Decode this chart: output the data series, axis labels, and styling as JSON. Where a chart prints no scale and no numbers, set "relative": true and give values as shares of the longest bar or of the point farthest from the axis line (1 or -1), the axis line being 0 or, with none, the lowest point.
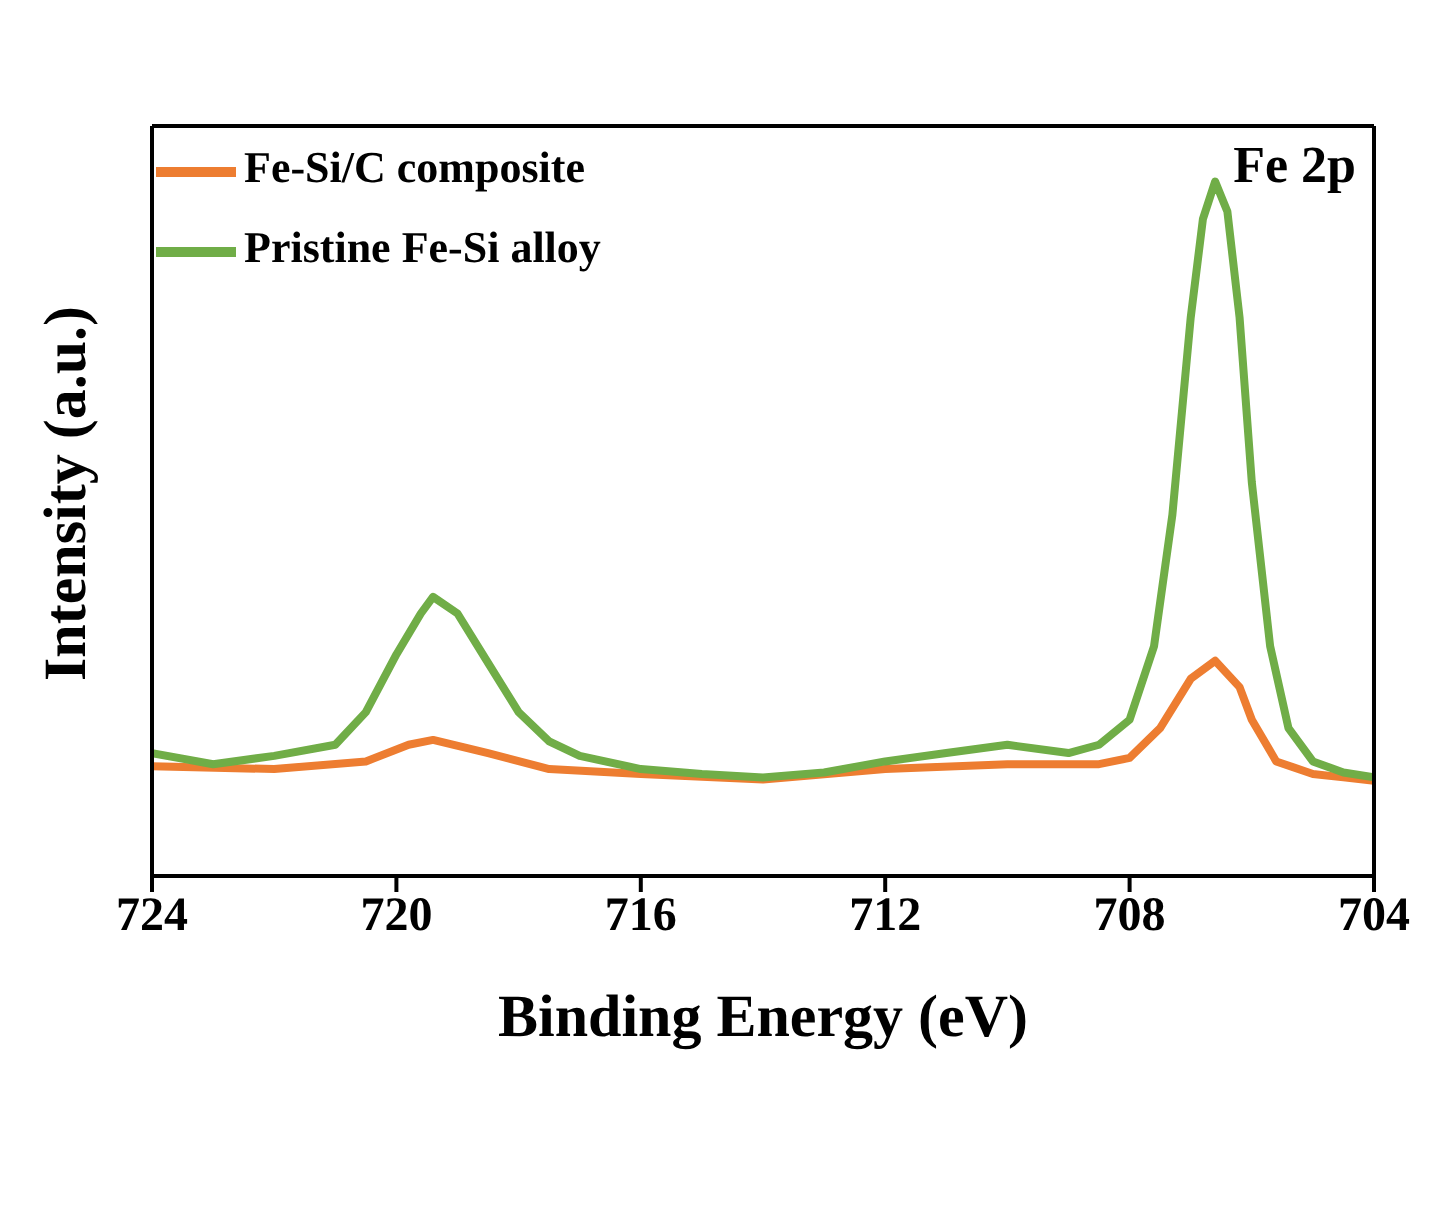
{
  "chart_data": {
    "type": "line",
    "xlabel": "Binding Energy (eV)",
    "ylabel": "Intensity (a.u.)",
    "annotations": [
      "Fe 2p"
    ],
    "relative": true,
    "xlim": [
      724,
      704
    ],
    "xticks": [
      724,
      720,
      716,
      712,
      708,
      704
    ],
    "legend": "top left",
    "grid": false,
    "marker": "none",
    "line_style": "solid",
    "series": [
      {
        "name": "Fe-Si/C composite",
        "color": "#ed7d31",
        "x": [
          724,
          722,
          720.5,
          719.8,
          719.4,
          718.5,
          717.5,
          716,
          714,
          712,
          710,
          708.5,
          708,
          707.5,
          707,
          706.6,
          706.2,
          706,
          705.6,
          705,
          704.5,
          704
        ],
        "values": [
          0.158,
          0.154,
          0.165,
          0.189,
          0.196,
          0.177,
          0.154,
          0.147,
          0.139,
          0.154,
          0.161,
          0.161,
          0.17,
          0.213,
          0.284,
          0.31,
          0.272,
          0.225,
          0.165,
          0.147,
          0.142,
          0.137
        ]
      },
      {
        "name": "Pristine Fe-Si alloy",
        "color": "#70ad47",
        "x": [
          724,
          723,
          722,
          721,
          720.5,
          720,
          719.6,
          719.4,
          719,
          718.5,
          718,
          717.5,
          717,
          716,
          715,
          714,
          713,
          712,
          711,
          710,
          709,
          708.5,
          708,
          707.6,
          707.3,
          707,
          706.8,
          706.6,
          706.4,
          706.2,
          706,
          705.7,
          705.4,
          705,
          704.5,
          704
        ],
        "values": [
          0.177,
          0.161,
          0.173,
          0.189,
          0.236,
          0.319,
          0.378,
          0.402,
          0.378,
          0.307,
          0.236,
          0.194,
          0.173,
          0.154,
          0.147,
          0.142,
          0.149,
          0.165,
          0.177,
          0.189,
          0.177,
          0.189,
          0.225,
          0.331,
          0.52,
          0.804,
          0.946,
          1.0,
          0.957,
          0.804,
          0.567,
          0.331,
          0.213,
          0.165,
          0.149,
          0.142
        ]
      }
    ]
  }
}
